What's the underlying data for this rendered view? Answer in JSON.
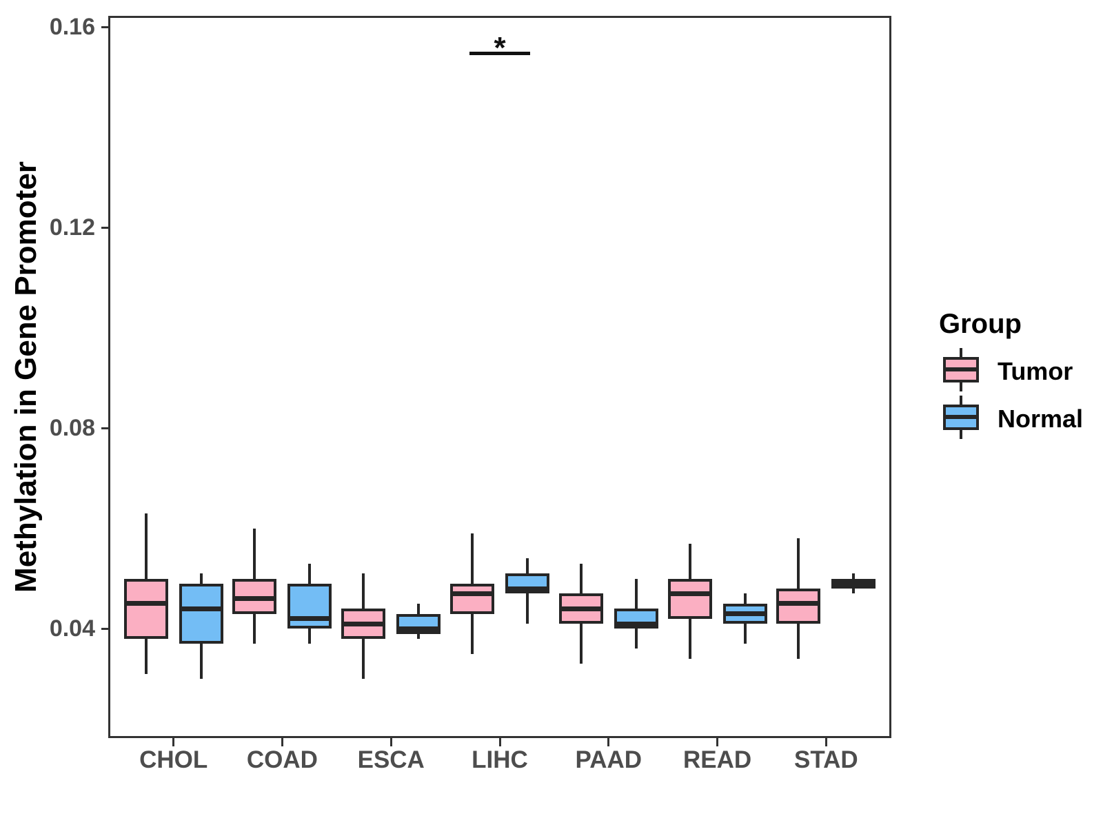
{
  "chart_data": {
    "type": "boxplot",
    "title": "",
    "xlabel": "",
    "ylabel": "Methylation in Gene Promoter",
    "categories": [
      "CHOL",
      "COAD",
      "ESCA",
      "LIHC",
      "PAAD",
      "READ",
      "STAD"
    ],
    "ylim": [
      0.0182,
      0.1622
    ],
    "yticks": [
      0.04,
      0.08,
      0.12,
      0.16
    ],
    "ytick_labels": [
      "0.04",
      "0.08",
      "0.12",
      "0.16"
    ],
    "grid": "off",
    "legend": {
      "title": "Group",
      "position": "right",
      "entries": [
        {
          "label": "Tumor",
          "color": "#FBAFC2"
        },
        {
          "label": "Normal",
          "color": "#73BDF5"
        }
      ]
    },
    "series": [
      {
        "name": "Tumor",
        "color": "#FBAFC2",
        "boxes": [
          {
            "category": "CHOL",
            "whisker_low": 0.031,
            "q1": 0.038,
            "median": 0.045,
            "q3": 0.05,
            "whisker_high": 0.063
          },
          {
            "category": "COAD",
            "whisker_low": 0.037,
            "q1": 0.043,
            "median": 0.046,
            "q3": 0.05,
            "whisker_high": 0.06
          },
          {
            "category": "ESCA",
            "whisker_low": 0.03,
            "q1": 0.038,
            "median": 0.041,
            "q3": 0.044,
            "whisker_high": 0.051
          },
          {
            "category": "LIHC",
            "whisker_low": 0.035,
            "q1": 0.043,
            "median": 0.047,
            "q3": 0.049,
            "whisker_high": 0.059
          },
          {
            "category": "PAAD",
            "whisker_low": 0.033,
            "q1": 0.041,
            "median": 0.044,
            "q3": 0.047,
            "whisker_high": 0.053
          },
          {
            "category": "READ",
            "whisker_low": 0.034,
            "q1": 0.042,
            "median": 0.047,
            "q3": 0.05,
            "whisker_high": 0.057
          },
          {
            "category": "STAD",
            "whisker_low": 0.034,
            "q1": 0.041,
            "median": 0.045,
            "q3": 0.048,
            "whisker_high": 0.058
          }
        ]
      },
      {
        "name": "Normal",
        "color": "#73BDF5",
        "boxes": [
          {
            "category": "CHOL",
            "whisker_low": 0.03,
            "q1": 0.037,
            "median": 0.044,
            "q3": 0.049,
            "whisker_high": 0.051
          },
          {
            "category": "COAD",
            "whisker_low": 0.037,
            "q1": 0.04,
            "median": 0.042,
            "q3": 0.049,
            "whisker_high": 0.053
          },
          {
            "category": "ESCA",
            "whisker_low": 0.038,
            "q1": 0.039,
            "median": 0.04,
            "q3": 0.043,
            "whisker_high": 0.045
          },
          {
            "category": "LIHC",
            "whisker_low": 0.041,
            "q1": 0.047,
            "median": 0.048,
            "q3": 0.051,
            "whisker_high": 0.054
          },
          {
            "category": "PAAD",
            "whisker_low": 0.036,
            "q1": 0.04,
            "median": 0.041,
            "q3": 0.044,
            "whisker_high": 0.05
          },
          {
            "category": "READ",
            "whisker_low": 0.037,
            "q1": 0.041,
            "median": 0.043,
            "q3": 0.045,
            "whisker_high": 0.047
          },
          {
            "category": "STAD",
            "whisker_low": 0.047,
            "q1": 0.048,
            "median": 0.049,
            "q3": 0.05,
            "whisker_high": 0.051
          }
        ]
      }
    ],
    "annotations": [
      {
        "type": "significance",
        "category": "LIHC",
        "label": "*",
        "y_line": 0.155
      }
    ]
  }
}
